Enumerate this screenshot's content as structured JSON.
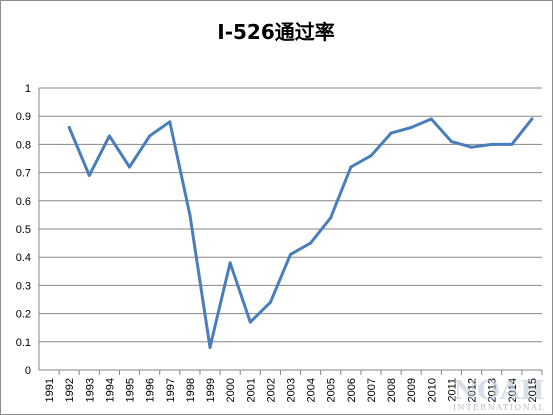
{
  "chart_data": {
    "type": "line",
    "title": "I-526通过率",
    "xlabel": "",
    "ylabel": "",
    "categories": [
      "1991",
      "1992",
      "1993",
      "1994",
      "1995",
      "1996",
      "1997",
      "1998",
      "1999",
      "2000",
      "2001",
      "2002",
      "2003",
      "2004",
      "2005",
      "2006",
      "2007",
      "2008",
      "2009",
      "2010",
      "2011",
      "2012",
      "2013",
      "2014",
      "2015"
    ],
    "series": [
      {
        "values": [
          null,
          0.86,
          0.69,
          0.83,
          0.72,
          0.83,
          0.88,
          0.55,
          0.08,
          0.38,
          0.17,
          0.24,
          0.41,
          0.45,
          0.54,
          0.72,
          0.76,
          0.84,
          0.86,
          0.89,
          0.81,
          0.79,
          0.8,
          0.8,
          0.89
        ],
        "color": "#4a7ebb"
      }
    ],
    "ylim": [
      0,
      1
    ],
    "yticks": [
      "0",
      "0.1",
      "0.2",
      "0.3",
      "0.4",
      "0.5",
      "0.6",
      "0.7",
      "0.8",
      "0.9",
      "1"
    ],
    "grid": true,
    "legend": "none"
  },
  "watermark": {
    "main": "NOAH",
    "sub": "INTERNATIONAL"
  }
}
